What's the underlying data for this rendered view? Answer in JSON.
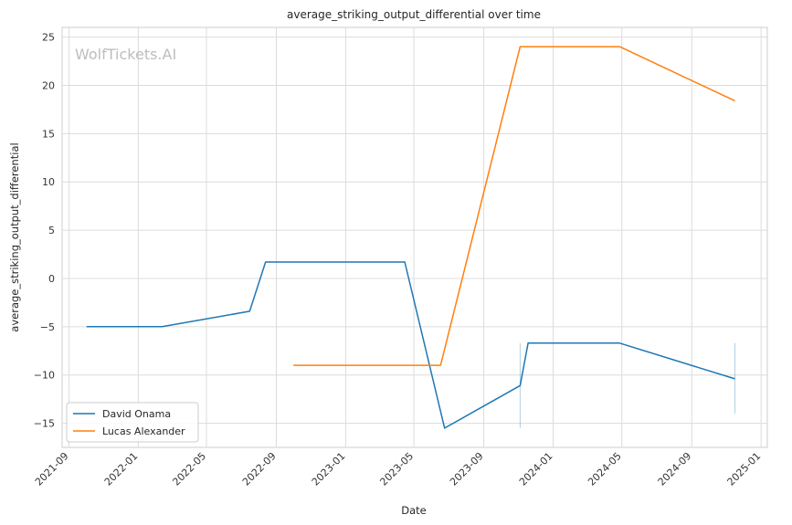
{
  "chart_data": {
    "type": "line",
    "title": "average_striking_output_differential over time",
    "xlabel": "Date",
    "ylabel": "average_striking_output_differential",
    "watermark": "WolfTickets.AI",
    "xlim": [
      "2021-08-20",
      "2025-01-12"
    ],
    "ylim": [
      -17.5,
      26
    ],
    "x_ticks": [
      "2021-09",
      "2022-01",
      "2022-05",
      "2022-09",
      "2023-01",
      "2023-05",
      "2023-09",
      "2024-01",
      "2024-05",
      "2024-09",
      "2025-01"
    ],
    "y_ticks": [
      -15,
      -10,
      -5,
      0,
      5,
      10,
      15,
      20,
      25
    ],
    "grid": true,
    "legend_position": "lower-left",
    "series": [
      {
        "name": "David Onama",
        "color": "#1f77b4",
        "points": [
          {
            "x": "2021-10-02",
            "y": -5.0
          },
          {
            "x": "2022-02-12",
            "y": -5.0
          },
          {
            "x": "2022-07-16",
            "y": -3.4
          },
          {
            "x": "2022-08-13",
            "y": 1.7
          },
          {
            "x": "2023-04-15",
            "y": 1.7
          },
          {
            "x": "2023-06-24",
            "y": -15.5
          },
          {
            "x": "2023-11-04",
            "y": -11.1
          },
          {
            "x": "2023-11-18",
            "y": -6.7
          },
          {
            "x": "2024-04-27",
            "y": -6.7
          },
          {
            "x": "2024-11-16",
            "y": -10.4
          }
        ],
        "error_bars": [
          {
            "x": "2023-11-04",
            "low": -15.5,
            "high": -6.7
          },
          {
            "x": "2024-11-16",
            "low": -14.0,
            "high": -6.7
          }
        ]
      },
      {
        "name": "Lucas Alexander",
        "color": "#ff7f0e",
        "points": [
          {
            "x": "2022-10-01",
            "y": -9.0
          },
          {
            "x": "2023-06-17",
            "y": -9.0
          },
          {
            "x": "2023-11-04",
            "y": 24.0
          },
          {
            "x": "2024-04-27",
            "y": 24.0
          },
          {
            "x": "2024-11-16",
            "y": 18.4
          }
        ]
      }
    ]
  }
}
